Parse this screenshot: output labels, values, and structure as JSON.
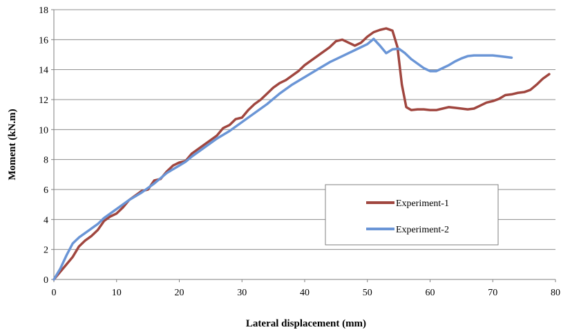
{
  "chart_data": {
    "type": "line",
    "title": "",
    "xlabel": "Lateral displacement (mm)",
    "ylabel": "Moment (kN.m)",
    "xlim": [
      0,
      80
    ],
    "ylim": [
      0,
      18
    ],
    "xticks": [
      0,
      10,
      20,
      30,
      40,
      50,
      60,
      70,
      80
    ],
    "yticks": [
      0,
      2,
      4,
      6,
      8,
      10,
      12,
      14,
      16,
      18
    ],
    "grid": "horizontal",
    "legend_placement": "center-right",
    "series": [
      {
        "name": "Experiment-1",
        "color": "#A0463F",
        "points": [
          [
            0,
            0
          ],
          [
            1,
            0.5
          ],
          [
            2,
            1.0
          ],
          [
            3,
            1.5
          ],
          [
            4,
            2.2
          ],
          [
            5,
            2.6
          ],
          [
            6,
            2.9
          ],
          [
            7,
            3.3
          ],
          [
            8,
            3.9
          ],
          [
            9,
            4.2
          ],
          [
            10,
            4.4
          ],
          [
            11,
            4.8
          ],
          [
            12,
            5.3
          ],
          [
            13,
            5.6
          ],
          [
            14,
            5.9
          ],
          [
            15,
            6.0
          ],
          [
            16,
            6.6
          ],
          [
            17,
            6.7
          ],
          [
            18,
            7.2
          ],
          [
            19,
            7.6
          ],
          [
            20,
            7.8
          ],
          [
            21,
            7.9
          ],
          [
            22,
            8.4
          ],
          [
            23,
            8.7
          ],
          [
            24,
            9.0
          ],
          [
            25,
            9.3
          ],
          [
            26,
            9.6
          ],
          [
            27,
            10.1
          ],
          [
            28,
            10.3
          ],
          [
            29,
            10.7
          ],
          [
            30,
            10.8
          ],
          [
            31,
            11.3
          ],
          [
            32,
            11.7
          ],
          [
            33,
            12.0
          ],
          [
            34,
            12.4
          ],
          [
            35,
            12.8
          ],
          [
            36,
            13.1
          ],
          [
            37,
            13.3
          ],
          [
            38,
            13.6
          ],
          [
            39,
            13.9
          ],
          [
            40,
            14.3
          ],
          [
            41,
            14.6
          ],
          [
            42,
            14.9
          ],
          [
            43,
            15.2
          ],
          [
            44,
            15.5
          ],
          [
            45,
            15.9
          ],
          [
            46,
            16.0
          ],
          [
            47,
            15.8
          ],
          [
            48,
            15.6
          ],
          [
            49,
            15.8
          ],
          [
            50,
            16.2
          ],
          [
            51,
            16.5
          ],
          [
            52,
            16.65
          ],
          [
            53,
            16.75
          ],
          [
            54,
            16.6
          ],
          [
            54.8,
            15.5
          ],
          [
            55.5,
            13.0
          ],
          [
            56.2,
            11.5
          ],
          [
            57,
            11.3
          ],
          [
            58,
            11.35
          ],
          [
            59,
            11.35
          ],
          [
            60,
            11.3
          ],
          [
            61,
            11.3
          ],
          [
            62,
            11.4
          ],
          [
            63,
            11.5
          ],
          [
            64,
            11.45
          ],
          [
            65,
            11.4
          ],
          [
            66,
            11.35
          ],
          [
            67,
            11.4
          ],
          [
            68,
            11.6
          ],
          [
            69,
            11.8
          ],
          [
            70,
            11.9
          ],
          [
            71,
            12.05
          ],
          [
            72,
            12.3
          ],
          [
            73,
            12.35
          ],
          [
            74,
            12.45
          ],
          [
            75,
            12.5
          ],
          [
            76,
            12.65
          ],
          [
            77,
            13.0
          ],
          [
            78,
            13.4
          ],
          [
            79,
            13.7
          ]
        ]
      },
      {
        "name": "Experiment-2",
        "color": "#6A95D6",
        "points": [
          [
            0,
            0
          ],
          [
            1,
            0.7
          ],
          [
            2,
            1.6
          ],
          [
            3,
            2.4
          ],
          [
            4,
            2.8
          ],
          [
            5,
            3.1
          ],
          [
            6,
            3.4
          ],
          [
            7,
            3.7
          ],
          [
            8,
            4.1
          ],
          [
            9,
            4.4
          ],
          [
            10,
            4.7
          ],
          [
            12,
            5.3
          ],
          [
            14,
            5.8
          ],
          [
            16,
            6.4
          ],
          [
            18,
            7.1
          ],
          [
            20,
            7.6
          ],
          [
            21,
            7.85
          ],
          [
            22,
            8.2
          ],
          [
            24,
            8.8
          ],
          [
            26,
            9.4
          ],
          [
            28,
            9.9
          ],
          [
            30,
            10.5
          ],
          [
            32,
            11.1
          ],
          [
            34,
            11.7
          ],
          [
            36,
            12.4
          ],
          [
            38,
            13.0
          ],
          [
            40,
            13.5
          ],
          [
            42,
            14.0
          ],
          [
            44,
            14.5
          ],
          [
            46,
            14.9
          ],
          [
            48,
            15.3
          ],
          [
            50,
            15.7
          ],
          [
            51,
            16.05
          ],
          [
            52,
            15.6
          ],
          [
            53,
            15.1
          ],
          [
            54,
            15.35
          ],
          [
            55,
            15.4
          ],
          [
            56,
            15.1
          ],
          [
            57,
            14.7
          ],
          [
            58,
            14.4
          ],
          [
            59,
            14.1
          ],
          [
            60,
            13.9
          ],
          [
            61,
            13.9
          ],
          [
            62,
            14.1
          ],
          [
            63,
            14.3
          ],
          [
            64,
            14.55
          ],
          [
            65,
            14.75
          ],
          [
            66,
            14.9
          ],
          [
            67,
            14.95
          ],
          [
            68,
            14.95
          ],
          [
            69,
            14.95
          ],
          [
            70,
            14.95
          ],
          [
            71,
            14.9
          ],
          [
            72,
            14.85
          ],
          [
            73,
            14.8
          ]
        ]
      }
    ]
  }
}
